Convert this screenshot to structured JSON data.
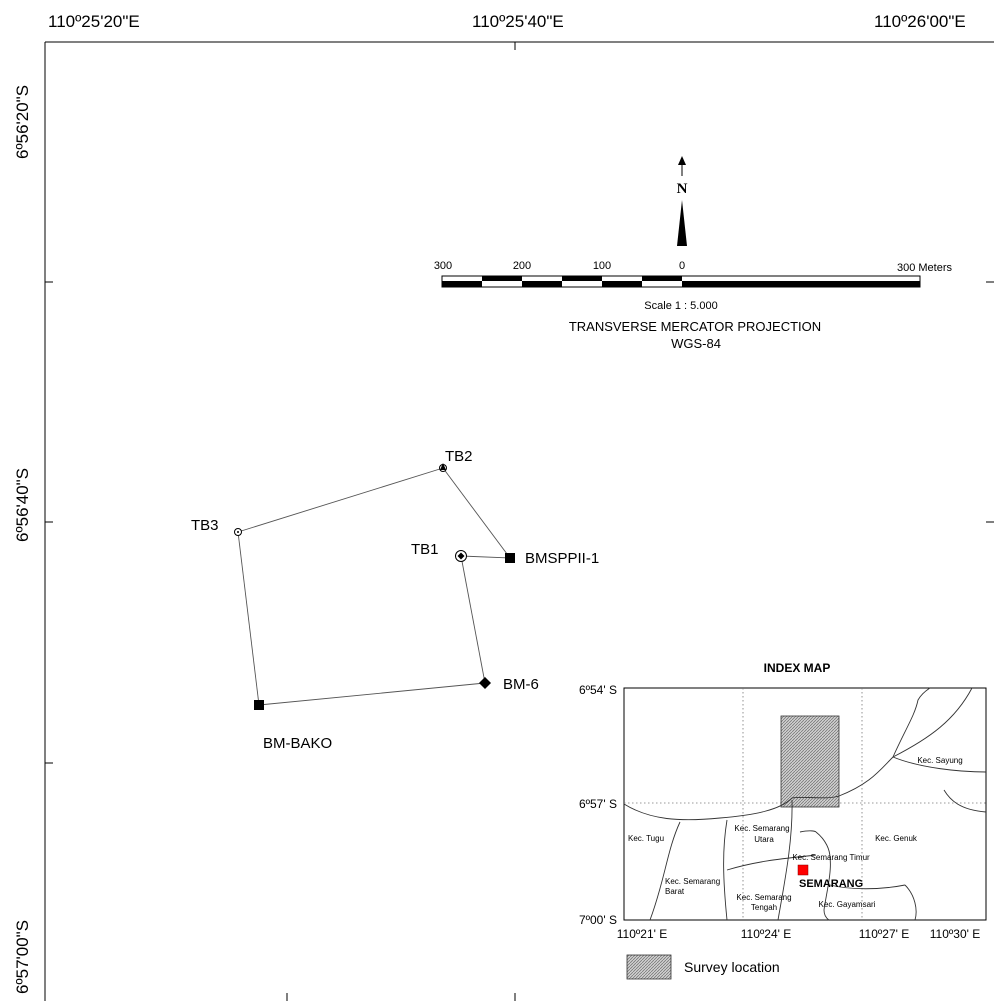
{
  "top_longitudes": [
    "110º25'20\"E",
    "110º25'40\"E",
    "110º26'00\"E"
  ],
  "left_latitudes": [
    "6º56'20\"S",
    "6º56'40\"S",
    "6º57'00\"S"
  ],
  "north_arrow": {
    "label": "N"
  },
  "scale_bar": {
    "labels": [
      "300",
      "200",
      "100",
      "0",
      "300 Meters"
    ],
    "scale_text": "Scale 1 : 5.000"
  },
  "projection": {
    "line1": "TRANSVERSE  MERCATOR PROJECTION",
    "line2": "WGS-84"
  },
  "survey_points": {
    "tb2": "TB2",
    "tb3": "TB3",
    "tb1": "TB1",
    "bmsppii1": "BMSPPII-1",
    "bm6": "BM-6",
    "bmbako": "BM-BAKO"
  },
  "index_map": {
    "title": "INDEX MAP",
    "lat_labels": [
      "6º54' S",
      "6º57' S",
      "7º00' S"
    ],
    "lon_labels": [
      "110º21' E",
      "110º24' E",
      "110º27' E",
      "110º30' E"
    ],
    "districts": {
      "sayung": "Kec. Sayung",
      "tugu": "Kec. Tugu",
      "semarang_utara_1": "Kec. Semarang",
      "semarang_utara_2": "Utara",
      "genuk": "Kec. Genuk",
      "semarang_timur": "Kec. Semarang Timur",
      "semarang_barat_1": "Kec. Semarang",
      "semarang_barat_2": "Barat",
      "semarang_tengah_1": "Kec. Semarang",
      "semarang_tengah_2": "Tengah",
      "gayamsari": "Kec. Gayamsari"
    },
    "city": "SEMARANG",
    "city_marker_color": "#ff0000"
  },
  "legend": {
    "survey_location": "Survey location"
  }
}
